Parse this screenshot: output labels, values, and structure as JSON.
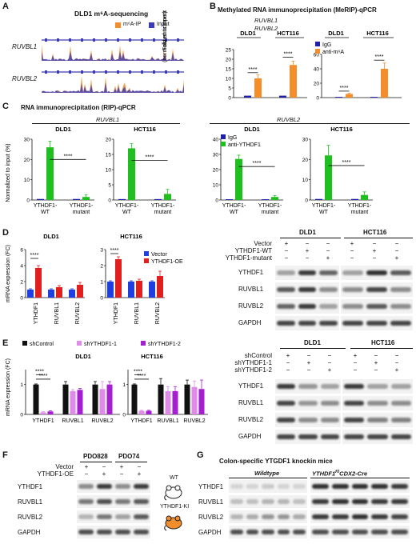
{
  "panels": {
    "A": {
      "label": "A",
      "title": "DLD1 m⁶A-sequencing",
      "legend": [
        "m⁶A-IP",
        "Input"
      ],
      "tracks": [
        "RUVBL1",
        "RUVBL2"
      ],
      "colors": {
        "ip": "#f28e2b",
        "input": "#3b3bb5"
      }
    },
    "B": {
      "label": "B",
      "title": "Methylated RNA immunoprecipitation (MeRIP)-qPCR",
      "genes": [
        "RUVBL1",
        "RUVBL2"
      ],
      "cells": [
        "DLD1",
        "HCT116"
      ],
      "ylabel": "Fold enrichment (normalized to input)",
      "legend": [
        "IgG",
        "anti-m⁶A"
      ],
      "sig": "****"
    },
    "C": {
      "label": "C",
      "title": "RNA immunoprecipitation (RIP)-qPCR",
      "genes": [
        "RUVBL1",
        "RUVBL2"
      ],
      "cells": [
        "DLD1",
        "HCT116"
      ],
      "ylabel": "Normalized to input (%)",
      "legend": [
        "IgG",
        "anti-YTHDF1"
      ],
      "sig": "****",
      "xcat1a": "YTHDF1-",
      "xcat1b": "WT",
      "xcat2a": "YTHDF1-",
      "xcat2b": "mutant"
    },
    "D": {
      "label": "D",
      "cells": [
        "DLD1",
        "HCT116"
      ],
      "ylabel": "mRNA expression (FC)",
      "legend": [
        "Vector",
        "YTHDF1-OE"
      ],
      "xcats": [
        "YTHDF1",
        "RUVBL1",
        "RUVBL2"
      ],
      "sig": "****",
      "blot": {
        "conditions": [
          "Vector",
          "YTHDF1-WT",
          "YTHDF1-mutant"
        ],
        "marks": [
          [
            "+",
            "−",
            "−",
            "+",
            "−",
            "−"
          ],
          [
            "−",
            "+",
            "−",
            "−",
            "+",
            "−"
          ],
          [
            "−",
            "−",
            "+",
            "−",
            "−",
            "+"
          ]
        ],
        "rows": [
          "YTHDF1",
          "RUVBL1",
          "RUVBL2",
          "GAPDH"
        ]
      }
    },
    "E": {
      "label": "E",
      "cells": [
        "DLD1",
        "HCT116"
      ],
      "ylabel": "mRNA expression (FC)",
      "legend": [
        "shControl",
        "shYTHDF1-1",
        "shYTHDF1-2"
      ],
      "xcats": [
        "YTHDF1",
        "RUVBL1",
        "RUVBL2"
      ],
      "sig": "****",
      "blot": {
        "conditions": [
          "shControl",
          "shYTHDF1-1",
          "shYTHDF1-2"
        ],
        "marks": [
          [
            "+",
            "−",
            "−",
            "+",
            "−",
            "−"
          ],
          [
            "−",
            "+",
            "−",
            "−",
            "+",
            "−"
          ],
          [
            "−",
            "−",
            "+",
            "−",
            "−",
            "+"
          ]
        ],
        "rows": [
          "YTHDF1",
          "RUVBL1",
          "RUVBL2",
          "GAPDH"
        ]
      }
    },
    "F": {
      "label": "F",
      "samples": [
        "PDO828",
        "PDO74"
      ],
      "conditions": [
        "Vector",
        "YTHDF1-OE"
      ],
      "marks": [
        [
          "+",
          "−",
          "+",
          "−"
        ],
        [
          "−",
          "+",
          "−",
          "+"
        ]
      ],
      "rows": [
        "YTHDF1",
        "RUVBL1",
        "RUVBL2",
        "GAPDH"
      ],
      "mice": [
        "WT",
        "YTHDF1-KI"
      ]
    },
    "G": {
      "label": "G",
      "title": "Colon-specific YTGDF1 knockin mice",
      "groups": [
        "Wildtype",
        "YTHDF1"
      ],
      "group2_sup": "KI",
      "group2_suffix": "CDX2-Cre",
      "rows": [
        "YTHDF1",
        "RUVBL1",
        "RUVBL2",
        "GAPDH"
      ]
    }
  },
  "chart_data": [
    {
      "type": "bar",
      "panel": "B",
      "gene": "RUVBL1",
      "categories": [
        "DLD1",
        "HCT116"
      ],
      "series": [
        {
          "name": "IgG",
          "values": [
            1,
            1
          ]
        },
        {
          "name": "anti-m⁶A",
          "values": [
            10,
            17
          ]
        }
      ],
      "ylim": [
        0,
        25
      ],
      "ticks": [
        0,
        5,
        10,
        15,
        20,
        25
      ],
      "errors": [
        [
          0,
          0
        ],
        [
          1.8,
          2
        ]
      ],
      "colors": [
        "#1f1fa8",
        "#f28e2b"
      ]
    },
    {
      "type": "bar",
      "panel": "B",
      "gene": "RUVBL2",
      "categories": [
        "DLD1",
        "HCT116"
      ],
      "series": [
        {
          "name": "IgG",
          "values": [
            1,
            1
          ]
        },
        {
          "name": "anti-m⁶A",
          "values": [
            5,
            40
          ]
        }
      ],
      "ylim": [
        0,
        60
      ],
      "ticks": [
        0,
        20,
        40,
        60
      ],
      "errors": [
        [
          0,
          0
        ],
        [
          1,
          8
        ]
      ],
      "colors": [
        "#1f1fa8",
        "#f28e2b"
      ]
    },
    {
      "type": "bar",
      "panel": "C",
      "gene": "RUVBL1",
      "cell": "DLD1",
      "categories": [
        "YTHDF1-WT",
        "YTHDF1-mutant"
      ],
      "series": [
        {
          "name": "IgG",
          "values": [
            0.5,
            0.5
          ]
        },
        {
          "name": "anti-YTHDF1",
          "values": [
            26,
            1.5
          ]
        }
      ],
      "ylim": [
        0,
        30
      ],
      "ticks": [
        0,
        10,
        20,
        30
      ],
      "errors": [
        [
          0,
          0
        ],
        [
          3,
          1
        ]
      ],
      "colors": [
        "#1f1fa8",
        "#1fbf1f"
      ]
    },
    {
      "type": "bar",
      "panel": "C",
      "gene": "RUVBL1",
      "cell": "HCT116",
      "categories": [
        "YTHDF1-WT",
        "YTHDF1-mutant"
      ],
      "series": [
        {
          "name": "IgG",
          "values": [
            0.3,
            0.3
          ]
        },
        {
          "name": "anti-YTHDF1",
          "values": [
            17,
            2
          ]
        }
      ],
      "ylim": [
        0,
        20
      ],
      "ticks": [
        0,
        5,
        10,
        15,
        20
      ],
      "errors": [
        [
          0,
          0
        ],
        [
          1.5,
          1.5
        ]
      ],
      "colors": [
        "#1f1fa8",
        "#1fbf1f"
      ]
    },
    {
      "type": "bar",
      "panel": "C",
      "gene": "RUVBL2",
      "cell": "DLD1",
      "categories": [
        "YTHDF1-WT",
        "YTHDF1-mutant"
      ],
      "series": [
        {
          "name": "IgG",
          "values": [
            0.5,
            0.5
          ]
        },
        {
          "name": "anti-YTHDF1",
          "values": [
            27,
            2
          ]
        }
      ],
      "ylim": [
        0,
        40
      ],
      "ticks": [
        0,
        10,
        20,
        30,
        40
      ],
      "errors": [
        [
          0,
          0
        ],
        [
          2.5,
          1
        ]
      ],
      "colors": [
        "#1f1fa8",
        "#1fbf1f"
      ]
    },
    {
      "type": "bar",
      "panel": "C",
      "gene": "RUVBL2",
      "cell": "HCT116",
      "categories": [
        "YTHDF1-WT",
        "YTHDF1-mutant"
      ],
      "series": [
        {
          "name": "IgG",
          "values": [
            0.5,
            0.5
          ]
        },
        {
          "name": "anti-YTHDF1",
          "values": [
            22,
            2.5
          ]
        }
      ],
      "ylim": [
        0,
        30
      ],
      "ticks": [
        0,
        10,
        20,
        30
      ],
      "errors": [
        [
          0,
          0
        ],
        [
          5,
          1.5
        ]
      ],
      "colors": [
        "#1f1fa8",
        "#1fbf1f"
      ]
    },
    {
      "type": "bar",
      "panel": "D",
      "cell": "DLD1",
      "categories": [
        "YTHDF1",
        "RUVBL1",
        "RUVBL2"
      ],
      "series": [
        {
          "name": "Vector",
          "values": [
            1,
            1,
            1
          ]
        },
        {
          "name": "YTHDF1-OE",
          "values": [
            3.7,
            1.3,
            1.6
          ]
        }
      ],
      "ylim": [
        0,
        6
      ],
      "ticks": [
        0,
        2,
        4,
        6
      ],
      "errors": [
        [
          0.1,
          0.1,
          0.1
        ],
        [
          0.3,
          0.2,
          0.3
        ]
      ],
      "colors": [
        "#1f3fe0",
        "#e01f1f"
      ]
    },
    {
      "type": "bar",
      "panel": "D",
      "cell": "HCT116",
      "categories": [
        "YTHDF1",
        "RUVBL1",
        "RUVBL2"
      ],
      "series": [
        {
          "name": "Vector",
          "values": [
            1,
            1,
            1
          ]
        },
        {
          "name": "YTHDF1-OE",
          "values": [
            2.4,
            1.05,
            1.35
          ]
        }
      ],
      "ylim": [
        0,
        3
      ],
      "ticks": [
        0,
        1,
        2,
        3
      ],
      "errors": [
        [
          0.05,
          0.05,
          0.05
        ],
        [
          0.15,
          0.1,
          0.3
        ]
      ],
      "colors": [
        "#1f3fe0",
        "#e01f1f"
      ]
    },
    {
      "type": "bar",
      "panel": "E",
      "cell": "DLD1",
      "categories": [
        "YTHDF1",
        "RUVBL1",
        "RUVBL2"
      ],
      "series": [
        {
          "name": "shControl",
          "values": [
            1,
            1,
            1
          ]
        },
        {
          "name": "shYTHDF1-1",
          "values": [
            0.07,
            0.78,
            0.85
          ]
        },
        {
          "name": "shYTHDF1-2",
          "values": [
            0.1,
            0.82,
            1.0
          ]
        }
      ],
      "ylim": [
        0,
        1.5
      ],
      "ticks": [
        0,
        1
      ],
      "errors": [
        [
          0.02,
          0.1,
          0.1
        ],
        [
          0.02,
          0.05,
          0.25
        ],
        [
          0.02,
          0.05,
          0.1
        ]
      ],
      "colors": [
        "#111111",
        "#e08aea",
        "#a51fd0"
      ]
    },
    {
      "type": "bar",
      "panel": "E",
      "cell": "HCT116",
      "categories": [
        "YTHDF1",
        "RUVBL1",
        "RUVBL2"
      ],
      "series": [
        {
          "name": "shControl",
          "values": [
            1,
            1,
            1
          ]
        },
        {
          "name": "shYTHDF1-1",
          "values": [
            0.12,
            0.78,
            0.92
          ]
        },
        {
          "name": "shYTHDF1-2",
          "values": [
            0.12,
            0.78,
            0.85
          ]
        }
      ],
      "ylim": [
        0,
        1.5
      ],
      "ticks": [
        0,
        1
      ],
      "errors": [
        [
          0.02,
          0.2,
          0.15
        ],
        [
          0.02,
          0.15,
          0.2
        ],
        [
          0.02,
          0.15,
          0.3
        ]
      ],
      "colors": [
        "#111111",
        "#e08aea",
        "#a51fd0"
      ]
    }
  ]
}
